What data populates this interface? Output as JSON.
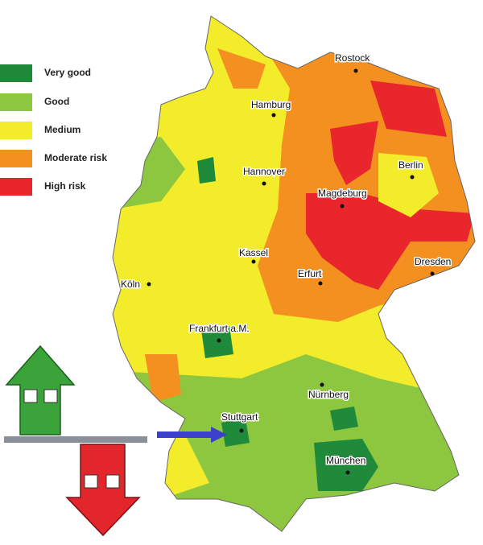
{
  "legend": [
    {
      "label": "Very good",
      "color": "#1f8a3a"
    },
    {
      "label": "Good",
      "color": "#8dc63f"
    },
    {
      "label": "Medium",
      "color": "#f3ec2a"
    },
    {
      "label": "Moderate risk",
      "color": "#f3901f"
    },
    {
      "label": "High risk",
      "color": "#e8262b"
    }
  ],
  "cities": [
    "Rostock",
    "Hamburg",
    "Hannover",
    "Berlin",
    "Magdeburg",
    "Kassel",
    "Erfurt",
    "Dresden",
    "Köln",
    "Frankfurt a.M.",
    "Nürnberg",
    "Stuttgart",
    "München"
  ]
}
